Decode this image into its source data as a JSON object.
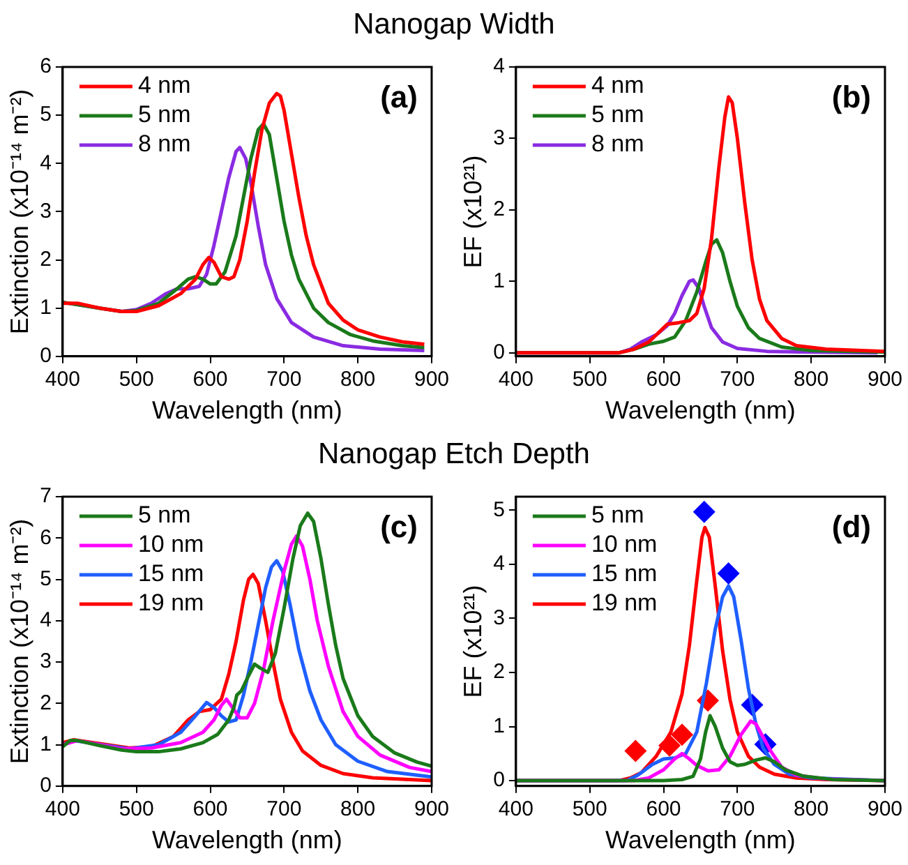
{
  "chart_data": [
    {
      "type": "line",
      "title": "Nanogap Width",
      "xlabel": "Wavelength (nm)",
      "ylabel": "Extinction (x10⁻¹⁴ m⁻²)",
      "xlim": [
        400,
        900
      ],
      "xticks": [
        400,
        500,
        600,
        700,
        800,
        900
      ],
      "ylim": [
        0,
        6
      ],
      "yticks": [
        0,
        1,
        2,
        3,
        4,
        5,
        6
      ],
      "grid": false,
      "legend": "top left",
      "annotations": [
        "(a)"
      ],
      "series": [
        {
          "name": "4 nm",
          "color": "#ff0000",
          "x": [
            400,
            420,
            450,
            480,
            500,
            530,
            560,
            580,
            590,
            598,
            605,
            615,
            625,
            632,
            640,
            650,
            660,
            670,
            680,
            690,
            695,
            700,
            710,
            720,
            730,
            740,
            750,
            760,
            780,
            800,
            830,
            860,
            890
          ],
          "values": [
            1.1,
            1.1,
            1.0,
            0.93,
            0.93,
            1.05,
            1.3,
            1.6,
            1.9,
            2.05,
            1.95,
            1.65,
            1.6,
            1.65,
            2.0,
            2.8,
            3.8,
            4.7,
            5.25,
            5.45,
            5.4,
            5.1,
            4.2,
            3.3,
            2.5,
            1.9,
            1.5,
            1.1,
            0.75,
            0.55,
            0.4,
            0.3,
            0.25
          ]
        },
        {
          "name": "5 nm",
          "color": "#1a7a1a",
          "x": [
            400,
            450,
            480,
            500,
            530,
            555,
            570,
            580,
            590,
            600,
            608,
            620,
            635,
            645,
            655,
            665,
            672,
            680,
            690,
            700,
            710,
            720,
            740,
            760,
            790,
            820,
            860,
            890
          ],
          "values": [
            1.12,
            1.0,
            0.93,
            0.95,
            1.1,
            1.4,
            1.6,
            1.65,
            1.6,
            1.5,
            1.5,
            1.75,
            2.5,
            3.3,
            4.1,
            4.7,
            4.82,
            4.6,
            3.7,
            2.8,
            2.1,
            1.6,
            1.0,
            0.7,
            0.45,
            0.32,
            0.22,
            0.18
          ]
        },
        {
          "name": "8 nm",
          "color": "#8a2be2",
          "x": [
            400,
            450,
            480,
            500,
            520,
            540,
            555,
            570,
            585,
            595,
            605,
            615,
            625,
            635,
            640,
            648,
            655,
            665,
            675,
            690,
            710,
            740,
            780,
            830,
            890
          ],
          "values": [
            1.12,
            1.0,
            0.93,
            0.97,
            1.1,
            1.3,
            1.4,
            1.4,
            1.45,
            1.7,
            2.3,
            3.0,
            3.7,
            4.25,
            4.33,
            4.1,
            3.6,
            2.7,
            1.9,
            1.2,
            0.7,
            0.4,
            0.22,
            0.15,
            0.12
          ]
        }
      ]
    },
    {
      "type": "line",
      "xlabel": "Wavelength (nm)",
      "ylabel": "EF (x10²¹)",
      "xlim": [
        400,
        900
      ],
      "xticks": [
        400,
        500,
        600,
        700,
        800,
        900
      ],
      "ylim": [
        -0.05,
        4
      ],
      "yticks": [
        0,
        1,
        2,
        3,
        4
      ],
      "grid": false,
      "legend": "top left",
      "annotations": [
        "(b)"
      ],
      "series": [
        {
          "name": "4 nm",
          "color": "#ff0000",
          "x": [
            400,
            540,
            560,
            580,
            595,
            605,
            620,
            635,
            645,
            655,
            665,
            675,
            683,
            688,
            693,
            700,
            710,
            720,
            730,
            740,
            760,
            780,
            820,
            900
          ],
          "values": [
            0,
            0,
            0.05,
            0.15,
            0.3,
            0.4,
            0.42,
            0.45,
            0.55,
            0.9,
            1.6,
            2.6,
            3.3,
            3.58,
            3.5,
            3.0,
            2.1,
            1.3,
            0.75,
            0.45,
            0.2,
            0.1,
            0.05,
            0.02
          ]
        },
        {
          "name": "5 nm",
          "color": "#1a7a1a",
          "x": [
            400,
            540,
            560,
            580,
            600,
            615,
            630,
            645,
            658,
            665,
            672,
            680,
            690,
            700,
            715,
            730,
            760,
            800,
            900
          ],
          "values": [
            0,
            0,
            0.05,
            0.12,
            0.16,
            0.22,
            0.45,
            0.85,
            1.3,
            1.52,
            1.58,
            1.4,
            1.0,
            0.65,
            0.35,
            0.2,
            0.08,
            0.03,
            0.01
          ]
        },
        {
          "name": "8 nm",
          "color": "#8a2be2",
          "x": [
            400,
            540,
            555,
            570,
            590,
            605,
            615,
            625,
            635,
            640,
            648,
            655,
            665,
            680,
            700,
            740,
            800,
            890
          ],
          "values": [
            0,
            0,
            0.05,
            0.15,
            0.25,
            0.38,
            0.55,
            0.8,
            1.0,
            1.02,
            0.9,
            0.65,
            0.35,
            0.15,
            0.06,
            0.02,
            0.01,
            0
          ]
        }
      ]
    },
    {
      "type": "line",
      "title": "Nanogap Etch Depth",
      "xlabel": "Wavelength (nm)",
      "ylabel": "Extinction (x10⁻¹⁴ m⁻²)",
      "xlim": [
        400,
        900
      ],
      "xticks": [
        400,
        500,
        600,
        700,
        800,
        900
      ],
      "ylim": [
        0,
        7
      ],
      "yticks": [
        0,
        1,
        2,
        3,
        4,
        5,
        6,
        7
      ],
      "grid": false,
      "legend": "top left",
      "annotations": [
        "(c)"
      ],
      "series": [
        {
          "name": "5 nm",
          "color": "#1a7a1a",
          "x": [
            400,
            410,
            420,
            450,
            480,
            500,
            530,
            560,
            590,
            610,
            625,
            632,
            636,
            642,
            650,
            660,
            668,
            678,
            688,
            700,
            712,
            722,
            732,
            740,
            750,
            760,
            770,
            780,
            800,
            820,
            850,
            880,
            900
          ],
          "values": [
            0.95,
            1.1,
            1.1,
            0.98,
            0.87,
            0.83,
            0.83,
            0.9,
            1.05,
            1.25,
            1.6,
            1.9,
            2.2,
            2.3,
            2.6,
            2.95,
            2.85,
            2.75,
            3.2,
            4.3,
            5.5,
            6.3,
            6.6,
            6.4,
            5.5,
            4.4,
            3.4,
            2.6,
            1.7,
            1.2,
            0.8,
            0.58,
            0.48
          ]
        },
        {
          "name": "10 nm",
          "color": "#ff00ff",
          "x": [
            400,
            420,
            450,
            480,
            520,
            560,
            590,
            605,
            615,
            622,
            630,
            640,
            650,
            660,
            672,
            685,
            700,
            710,
            717,
            725,
            735,
            745,
            760,
            780,
            800,
            830,
            870,
            900
          ],
          "values": [
            1.0,
            1.1,
            1.0,
            0.9,
            0.92,
            1.05,
            1.3,
            1.6,
            1.95,
            2.1,
            1.9,
            1.65,
            1.65,
            2.0,
            2.8,
            4.0,
            5.2,
            5.85,
            6.05,
            5.8,
            5.0,
            4.0,
            2.9,
            1.8,
            1.2,
            0.75,
            0.45,
            0.35
          ]
        },
        {
          "name": "15 nm",
          "color": "#1f5fff",
          "x": [
            400,
            415,
            490,
            530,
            560,
            580,
            595,
            605,
            615,
            625,
            635,
            645,
            655,
            665,
            675,
            683,
            690,
            698,
            708,
            720,
            735,
            750,
            770,
            800,
            840,
            900
          ],
          "values": [
            1.0,
            1.1,
            0.9,
            1.0,
            1.3,
            1.7,
            2.02,
            1.9,
            1.7,
            1.55,
            1.6,
            2.2,
            3.0,
            3.9,
            4.8,
            5.3,
            5.45,
            5.2,
            4.4,
            3.3,
            2.3,
            1.6,
            1.0,
            0.6,
            0.35,
            0.22
          ]
        },
        {
          "name": "19 nm",
          "color": "#ff0000",
          "x": [
            400,
            415,
            490,
            520,
            550,
            570,
            585,
            600,
            615,
            625,
            635,
            645,
            652,
            658,
            665,
            675,
            685,
            695,
            710,
            725,
            750,
            780,
            820,
            900
          ],
          "values": [
            1.05,
            1.12,
            0.92,
            0.95,
            1.2,
            1.6,
            1.8,
            1.85,
            2.1,
            2.7,
            3.5,
            4.5,
            5.0,
            5.12,
            4.9,
            4.0,
            3.0,
            2.1,
            1.3,
            0.85,
            0.5,
            0.3,
            0.2,
            0.13
          ]
        }
      ]
    },
    {
      "type": "line",
      "xlabel": "Wavelength (nm)",
      "ylabel": "EF (x10²¹)",
      "xlim": [
        400,
        900
      ],
      "xticks": [
        400,
        500,
        600,
        700,
        800,
        900
      ],
      "ylim": [
        -0.1,
        5.25
      ],
      "yticks": [
        0,
        1,
        2,
        3,
        4,
        5
      ],
      "grid": false,
      "legend": "top left",
      "annotations": [
        "(d)"
      ],
      "series": [
        {
          "name": "5 nm",
          "color": "#1a7a1a",
          "x": [
            400,
            600,
            625,
            640,
            650,
            657,
            663,
            670,
            680,
            690,
            700,
            710,
            725,
            738,
            750,
            765,
            790,
            830,
            900
          ],
          "values": [
            0,
            0,
            0.02,
            0.08,
            0.4,
            0.9,
            1.2,
            1.0,
            0.6,
            0.35,
            0.28,
            0.3,
            0.38,
            0.42,
            0.35,
            0.2,
            0.08,
            0.02,
            0
          ]
        },
        {
          "name": "10 nm",
          "color": "#ff00ff",
          "x": [
            400,
            560,
            580,
            600,
            615,
            625,
            635,
            645,
            660,
            675,
            690,
            705,
            718,
            725,
            735,
            745,
            760,
            780,
            820,
            900
          ],
          "values": [
            0,
            0,
            0.05,
            0.2,
            0.4,
            0.5,
            0.4,
            0.28,
            0.18,
            0.2,
            0.45,
            0.85,
            1.1,
            1.05,
            0.8,
            0.55,
            0.25,
            0.1,
            0.03,
            0
          ]
        },
        {
          "name": "15 nm",
          "color": "#1f5fff",
          "x": [
            400,
            550,
            565,
            585,
            600,
            615,
            630,
            645,
            658,
            670,
            680,
            688,
            695,
            705,
            715,
            725,
            735,
            750,
            770,
            800,
            900
          ],
          "values": [
            0,
            0,
            0.1,
            0.3,
            0.4,
            0.42,
            0.5,
            0.9,
            1.8,
            2.8,
            3.4,
            3.6,
            3.4,
            2.6,
            1.7,
            1.05,
            0.6,
            0.3,
            0.12,
            0.05,
            0
          ]
        },
        {
          "name": "19 nm",
          "color": "#ff0000",
          "x": [
            400,
            540,
            555,
            570,
            590,
            610,
            625,
            635,
            645,
            652,
            656,
            662,
            670,
            680,
            690,
            700,
            715,
            730,
            750,
            780,
            820,
            900
          ],
          "values": [
            0,
            0,
            0.05,
            0.15,
            0.45,
            0.9,
            1.6,
            2.5,
            3.7,
            4.5,
            4.68,
            4.5,
            3.6,
            2.4,
            1.5,
            0.9,
            0.45,
            0.25,
            0.12,
            0.05,
            0.02,
            0
          ]
        },
        {
          "type": "scatter",
          "marker": "diamond",
          "color": "#ff0000",
          "x": [
            562,
            608,
            625,
            660
          ],
          "values": [
            0.55,
            0.65,
            0.85,
            1.48
          ]
        },
        {
          "type": "scatter",
          "marker": "diamond",
          "color": "#0000ff",
          "x": [
            655,
            688,
            720,
            738
          ],
          "values": [
            4.97,
            3.83,
            1.4,
            0.67
          ]
        }
      ]
    }
  ]
}
